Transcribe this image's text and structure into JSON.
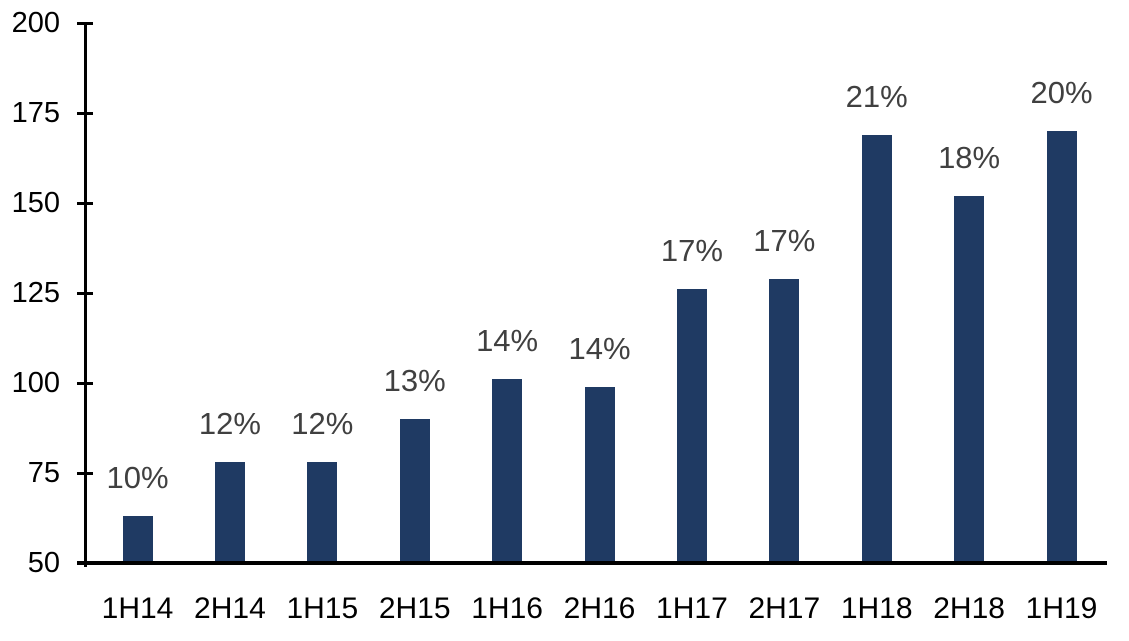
{
  "chart_data": {
    "type": "bar",
    "title": "",
    "xlabel": "",
    "ylabel": "",
    "categories": [
      "1H14",
      "2H14",
      "1H15",
      "2H15",
      "1H16",
      "2H16",
      "1H17",
      "2H17",
      "1H18",
      "2H18",
      "1H19"
    ],
    "values": [
      63,
      78,
      78,
      90,
      101,
      99,
      126,
      129,
      169,
      152,
      170
    ],
    "bar_labels": [
      "10%",
      "12%",
      "12%",
      "13%",
      "14%",
      "14%",
      "17%",
      "17%",
      "21%",
      "18%",
      "20%"
    ],
    "ylim": [
      50,
      200
    ],
    "ytick_interval": 25,
    "yticks": [
      50,
      75,
      100,
      125,
      150,
      175,
      200
    ],
    "grid": false,
    "legend": "none",
    "colors": {
      "bar": "#1f3a63",
      "bar_label": "#404040",
      "axis": "#000000",
      "tick_label": "#000000",
      "background": "#ffffff"
    }
  }
}
